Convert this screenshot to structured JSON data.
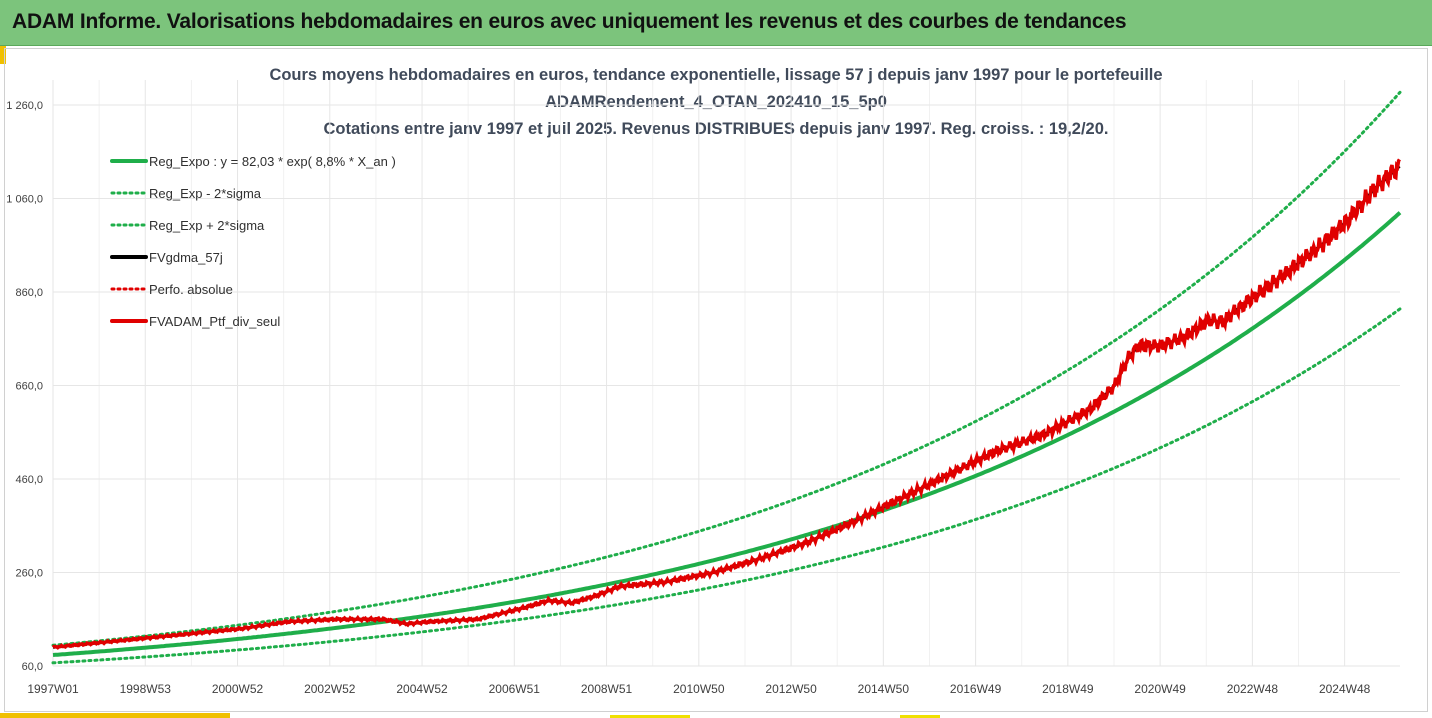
{
  "banner": {
    "title": "ADAM Informe. Valorisations hebdomadaires en euros avec uniquement les revenus et des courbes de tendances"
  },
  "chart_data": {
    "type": "line",
    "title_lines": [
      "Cours moyens hebdomadaires  en euros, tendance exponentielle, lissage 57 j depuis janv 1997 pour le portefeuille",
      "ADAMRendement_4_OTAN_202410_15_5p0",
      "Cotations  entre janv 1997 et juil 2025. Revenus DISTRIBUES depuis janv 1997. Reg. croiss. : 19,2/20."
    ],
    "xlabel": "",
    "ylabel": "",
    "ylim": [
      60,
      1260
    ],
    "y_ticks": [
      "1 260,0",
      "1 060,0",
      "860,0",
      "660,0",
      "460,0",
      "260,0",
      "60,0"
    ],
    "y_tick_values": [
      1260,
      1060,
      860,
      660,
      460,
      260,
      60
    ],
    "x_ticks": [
      "1997W01",
      "1998W53",
      "2000W52",
      "2002W52",
      "2004W52",
      "2006W51",
      "2008W51",
      "2010W50",
      "2012W50",
      "2014W50",
      "2016W49",
      "2018W49",
      "2020W49",
      "2022W48",
      "2024W48"
    ],
    "x_range_years": [
      1997.0,
      2025.55
    ],
    "grid": true,
    "legend_position": "top-left",
    "colors": {
      "trend": "#1fae4a",
      "smooth": "#000000",
      "perf": "#e00000",
      "grid": "#e6e6e6",
      "axis_text": "#404040"
    },
    "series": [
      {
        "name": "Reg_Expo : y = 82,03 * exp( 8,8% *  X_an )",
        "style": "solid-green",
        "formula": {
          "a": 82.03,
          "rate": 0.088,
          "factor": 1.0
        }
      },
      {
        "name": "Reg_Exp - 2*sigma",
        "style": "dotted-green",
        "formula": {
          "a": 82.03,
          "rate": 0.088,
          "factor": 0.8
        }
      },
      {
        "name": "Reg_Exp + 2*sigma",
        "style": "dotted-green",
        "formula": {
          "a": 82.03,
          "rate": 0.088,
          "factor": 1.25
        }
      },
      {
        "name": "FVgdma_57j",
        "style": "solid-black"
      },
      {
        "name": "Perfo. absolue",
        "style": "dotted-red"
      },
      {
        "name": "FVADAM_Ptf_div_seul",
        "style": "solid-red",
        "x": [
          1997.0,
          1998.0,
          1999.0,
          2000.0,
          2001.0,
          2002.0,
          2003.0,
          2004.0,
          2004.5,
          2005.0,
          2006.0,
          2007.0,
          2007.5,
          2008.0,
          2008.5,
          2009.0,
          2010.0,
          2011.0,
          2012.0,
          2013.0,
          2014.0,
          2015.0,
          2016.0,
          2017.0,
          2018.0,
          2019.0,
          2019.5,
          2019.8,
          2020.0,
          2020.5,
          2021.0,
          2021.5,
          2021.8,
          2022.0,
          2023.0,
          2024.0,
          2024.5,
          2025.0,
          2025.55
        ],
        "y": [
          100,
          110,
          120,
          130,
          140,
          155,
          160,
          160,
          150,
          155,
          160,
          185,
          200,
          195,
          210,
          230,
          240,
          260,
          290,
          325,
          370,
          420,
          470,
          520,
          555,
          610,
          660,
          720,
          745,
          745,
          765,
          800,
          795,
          815,
          890,
          970,
          1020,
          1080,
          1130
        ]
      }
    ]
  }
}
